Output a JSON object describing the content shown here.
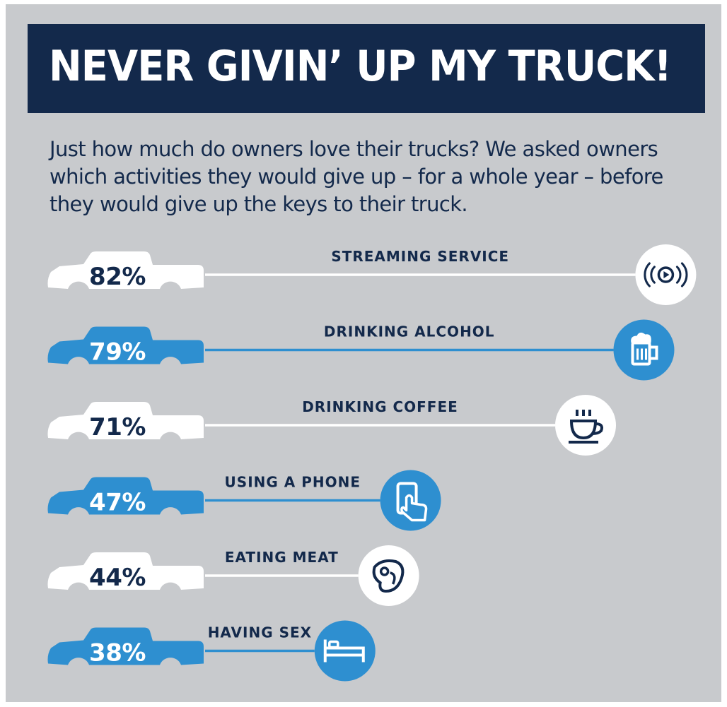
{
  "header": {
    "title": "NEVER GIVIN’ UP MY TRUCK!",
    "intro": "Just how much do owners love their trucks? We asked owners which activities they would give up – for a whole year – before they would give up the keys to their truck."
  },
  "colors": {
    "background": "#c8cacd",
    "navy": "#13294b",
    "blue": "#2e8fd0",
    "white": "#ffffff"
  },
  "chart_data": {
    "type": "bar",
    "orientation": "horizontal",
    "categories": [
      "STREAMING SERVICE",
      "DRINKING ALCOHOL",
      "DRINKING COFFEE",
      "USING A PHONE",
      "EATING MEAT",
      "HAVING SEX"
    ],
    "values": [
      82,
      79,
      71,
      47,
      44,
      38
    ],
    "labels": [
      "82%",
      "79%",
      "71%",
      "47%",
      "44%",
      "38%"
    ],
    "icons": [
      "streaming-icon",
      "beer-mug-icon",
      "coffee-cup-icon",
      "phone-touch-icon",
      "steak-icon",
      "bed-icon"
    ],
    "style": [
      "white",
      "blue",
      "white",
      "blue",
      "white",
      "blue"
    ]
  }
}
